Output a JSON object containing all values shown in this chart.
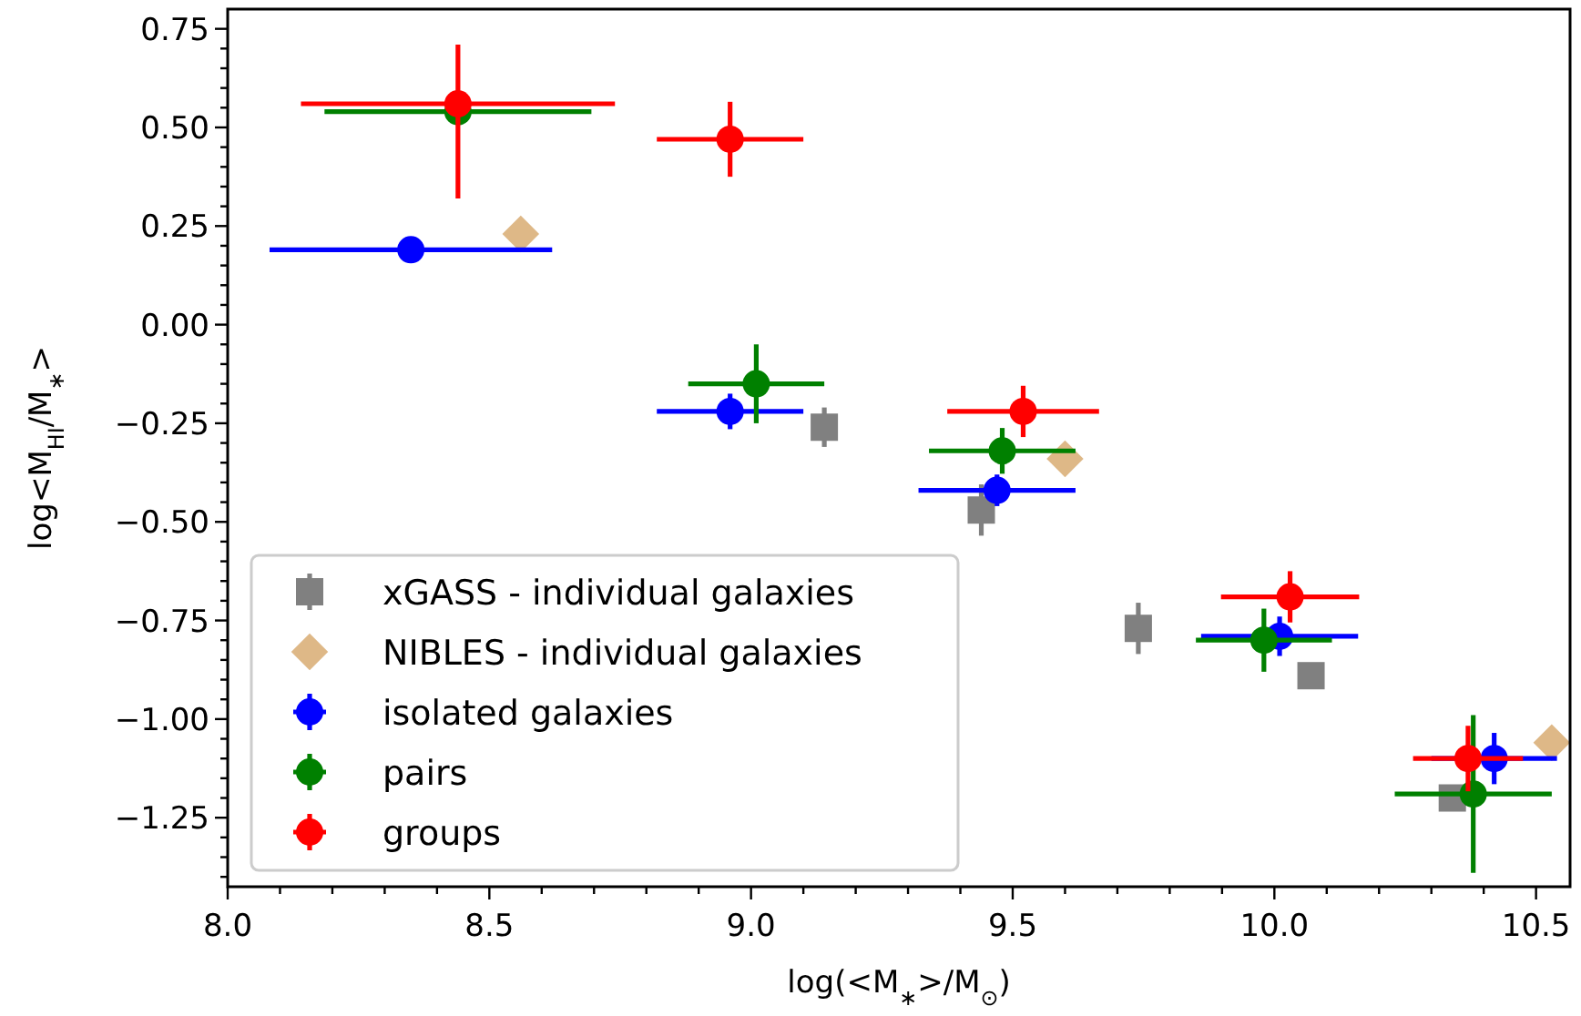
{
  "chart_data": {
    "type": "scatter",
    "xlabel": "log(<M$_{∗}$>/M$_{⊙}$)",
    "ylabel": "log<M$_{HI}$/M$_{∗}$>",
    "xlim": [
      8.0,
      10.565
    ],
    "ylim": [
      -1.425,
      0.8
    ],
    "xticks": [
      {
        "value": 8.0,
        "label": "8.0"
      },
      {
        "value": 8.5,
        "label": "8.5"
      },
      {
        "value": 9.0,
        "label": "9.0"
      },
      {
        "value": 9.5,
        "label": "9.5"
      },
      {
        "value": 10.0,
        "label": "10.0"
      },
      {
        "value": 10.5,
        "label": "10.5"
      },
      {
        "value": 8.1,
        "label": null
      },
      {
        "value": 8.2,
        "label": null
      },
      {
        "value": 8.3,
        "label": null
      },
      {
        "value": 8.4,
        "label": null
      },
      {
        "value": 8.6,
        "label": null
      },
      {
        "value": 8.7,
        "label": null
      },
      {
        "value": 8.8,
        "label": null
      },
      {
        "value": 8.9,
        "label": null
      },
      {
        "value": 9.1,
        "label": null
      },
      {
        "value": 9.2,
        "label": null
      },
      {
        "value": 9.3,
        "label": null
      },
      {
        "value": 9.4,
        "label": null
      },
      {
        "value": 9.6,
        "label": null
      },
      {
        "value": 9.7,
        "label": null
      },
      {
        "value": 9.8,
        "label": null
      },
      {
        "value": 9.9,
        "label": null
      },
      {
        "value": 10.1,
        "label": null
      },
      {
        "value": 10.2,
        "label": null
      },
      {
        "value": 10.3,
        "label": null
      },
      {
        "value": 10.4,
        "label": null
      }
    ],
    "yticks": [
      {
        "value": 0.75,
        "label": "0.75"
      },
      {
        "value": 0.5,
        "label": "0.50"
      },
      {
        "value": 0.25,
        "label": "0.25"
      },
      {
        "value": 0,
        "label": "0.00"
      },
      {
        "value": -0.25,
        "label": "−0.25"
      },
      {
        "value": -0.5,
        "label": "−0.50"
      },
      {
        "value": -0.75,
        "label": "−0.75"
      },
      {
        "value": -1.0,
        "label": "−1.00"
      },
      {
        "value": -1.25,
        "label": "−1.25"
      },
      {
        "value": 0.7,
        "label": null
      },
      {
        "value": 0.65,
        "label": null
      },
      {
        "value": 0.6,
        "label": null
      },
      {
        "value": 0.55,
        "label": null
      },
      {
        "value": 0.45,
        "label": null
      },
      {
        "value": 0.4,
        "label": null
      },
      {
        "value": 0.35,
        "label": null
      },
      {
        "value": 0.3,
        "label": null
      },
      {
        "value": 0.2,
        "label": null
      },
      {
        "value": 0.15,
        "label": null
      },
      {
        "value": 0.1,
        "label": null
      },
      {
        "value": 0.05,
        "label": null
      },
      {
        "value": -0.05,
        "label": null
      },
      {
        "value": -0.1,
        "label": null
      },
      {
        "value": -0.15,
        "label": null
      },
      {
        "value": -0.2,
        "label": null
      },
      {
        "value": -0.3,
        "label": null
      },
      {
        "value": -0.35,
        "label": null
      },
      {
        "value": -0.4,
        "label": null
      },
      {
        "value": -0.45,
        "label": null
      },
      {
        "value": -0.55,
        "label": null
      },
      {
        "value": -0.6,
        "label": null
      },
      {
        "value": -0.65,
        "label": null
      },
      {
        "value": -0.7,
        "label": null
      },
      {
        "value": -0.8,
        "label": null
      },
      {
        "value": -0.85,
        "label": null
      },
      {
        "value": -0.9,
        "label": null
      },
      {
        "value": -0.95,
        "label": null
      },
      {
        "value": -1.05,
        "label": null
      },
      {
        "value": -1.1,
        "label": null
      },
      {
        "value": -1.15,
        "label": null
      },
      {
        "value": -1.2,
        "label": null
      },
      {
        "value": -1.3,
        "label": null
      },
      {
        "value": -1.35,
        "label": null
      },
      {
        "value": -1.4,
        "label": null
      }
    ],
    "legend": "bottom left",
    "series": [
      {
        "name": "xGASS - individual galaxies",
        "color": "#808080",
        "marker": "square",
        "x": [
          9.14,
          9.44,
          9.74,
          10.07,
          10.34
        ],
        "values": [
          -0.26,
          -0.47,
          -0.77,
          -0.89,
          -1.2
        ],
        "errors": [
          0.05,
          0.065,
          0.065,
          0.02,
          0.02
        ]
      },
      {
        "name": "NIBLES - individual galaxies",
        "color": "#deb887",
        "marker": "diamond",
        "x": [
          8.56,
          9.6,
          10.53
        ],
        "values": [
          0.23,
          -0.34,
          -1.06
        ]
      },
      {
        "name": "isolated galaxies",
        "color": "#0000ff",
        "marker": "circle",
        "x": [
          8.35,
          8.96,
          9.47,
          10.01,
          10.42
        ],
        "values": [
          0.19,
          -0.22,
          -0.42,
          -0.79,
          -1.1
        ],
        "errors": [
          0.02,
          0.045,
          0.04,
          0.05,
          0.065
        ],
        "xerrors": [
          0.27,
          0.14,
          0.15,
          0.15,
          0.12
        ]
      },
      {
        "name": "pairs",
        "color": "#008000",
        "marker": "circle",
        "x": [
          8.44,
          9.01,
          9.48,
          9.98,
          10.38
        ],
        "values": [
          0.54,
          -0.15,
          -0.32,
          -0.8,
          -1.19
        ],
        "errors": [
          0.03,
          0.1,
          0.058,
          0.08,
          0.2
        ],
        "xerrors": [
          0.255,
          0.13,
          0.14,
          0.13,
          0.15
        ]
      },
      {
        "name": "groups",
        "color": "#ff0000",
        "marker": "circle",
        "x": [
          8.44,
          8.96,
          9.52,
          10.03,
          10.37
        ],
        "values": [
          0.56,
          0.47,
          -0.22,
          -0.69,
          -1.1
        ],
        "errors": [
          [
            0.32,
            0.71
          ],
          0.095,
          0.065,
          0.065,
          0.083
        ],
        "xerrors": [
          0.3,
          0.14,
          0.145,
          0.132,
          0.105
        ]
      }
    ]
  }
}
